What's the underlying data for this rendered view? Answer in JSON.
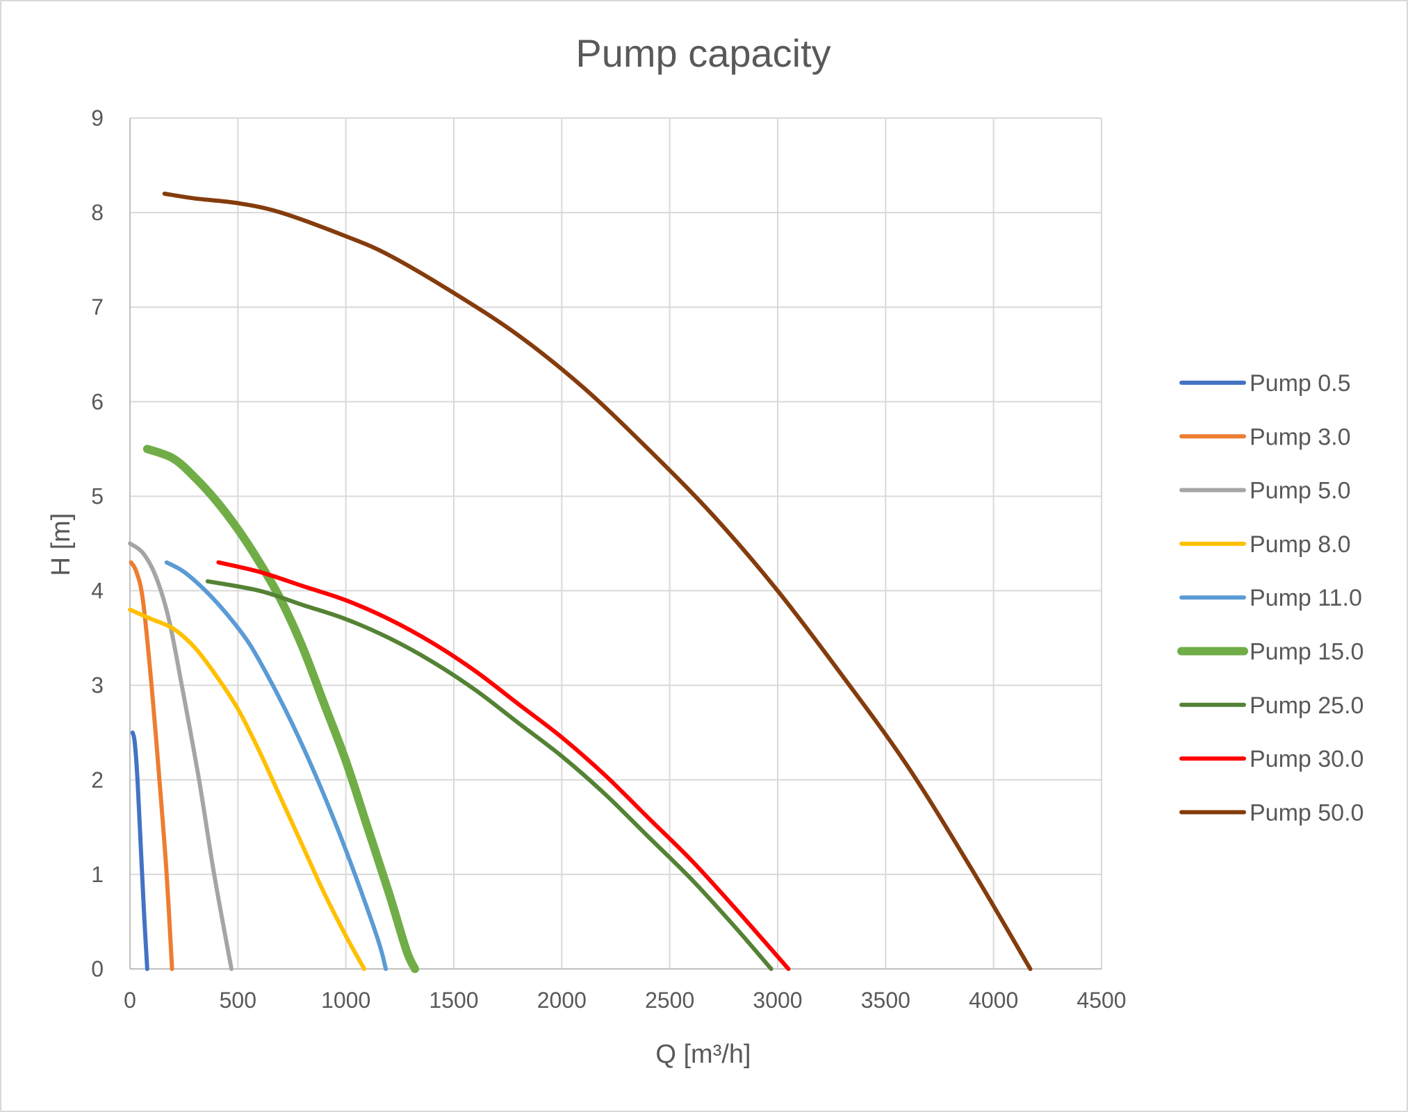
{
  "chart_data": {
    "type": "line",
    "title": "Pump capacity",
    "xlabel": "Q [m³/h]",
    "ylabel": "H [m]",
    "xlim": [
      0,
      4500
    ],
    "ylim": [
      0,
      9
    ],
    "x_ticks": [
      0,
      500,
      1000,
      1500,
      2000,
      2500,
      3000,
      3500,
      4000,
      4500
    ],
    "y_ticks": [
      0,
      1,
      2,
      3,
      4,
      5,
      6,
      7,
      8,
      9
    ],
    "grid": true,
    "legend_position": "right",
    "series": [
      {
        "name": "Pump 0.5",
        "color": "#4472c4",
        "weight": 3,
        "points": [
          [
            12,
            2.5
          ],
          [
            22,
            2.4
          ],
          [
            35,
            2.0
          ],
          [
            50,
            1.3
          ],
          [
            65,
            0.6
          ],
          [
            80,
            0
          ]
        ]
      },
      {
        "name": "Pump 3.0",
        "color": "#ed7d31",
        "weight": 3,
        "points": [
          [
            5,
            4.3
          ],
          [
            30,
            4.2
          ],
          [
            60,
            3.9
          ],
          [
            100,
            3.0
          ],
          [
            140,
            1.9
          ],
          [
            170,
            1.0
          ],
          [
            195,
            0
          ]
        ]
      },
      {
        "name": "Pump 5.0",
        "color": "#a5a5a5",
        "weight": 3,
        "points": [
          [
            0,
            4.5
          ],
          [
            60,
            4.4
          ],
          [
            120,
            4.15
          ],
          [
            180,
            3.7
          ],
          [
            240,
            3.0
          ],
          [
            320,
            2.0
          ],
          [
            390,
            1.0
          ],
          [
            470,
            0
          ]
        ]
      },
      {
        "name": "Pump 8.0",
        "color": "#ffc000",
        "weight": 3,
        "points": [
          [
            0,
            3.8
          ],
          [
            100,
            3.7
          ],
          [
            200,
            3.6
          ],
          [
            300,
            3.4
          ],
          [
            400,
            3.1
          ],
          [
            500,
            2.75
          ],
          [
            600,
            2.3
          ],
          [
            700,
            1.8
          ],
          [
            800,
            1.3
          ],
          [
            900,
            0.8
          ],
          [
            1000,
            0.35
          ],
          [
            1085,
            0
          ]
        ]
      },
      {
        "name": "Pump 11.0",
        "color": "#5b9bd5",
        "weight": 3,
        "points": [
          [
            170,
            4.3
          ],
          [
            250,
            4.2
          ],
          [
            350,
            4.0
          ],
          [
            450,
            3.75
          ],
          [
            550,
            3.45
          ],
          [
            650,
            3.05
          ],
          [
            750,
            2.6
          ],
          [
            850,
            2.1
          ],
          [
            950,
            1.55
          ],
          [
            1050,
            0.95
          ],
          [
            1150,
            0.3
          ],
          [
            1185,
            0
          ]
        ]
      },
      {
        "name": "Pump 15.0",
        "color": "#70ad47",
        "weight": 6,
        "points": [
          [
            80,
            5.5
          ],
          [
            200,
            5.4
          ],
          [
            300,
            5.2
          ],
          [
            400,
            4.95
          ],
          [
            500,
            4.65
          ],
          [
            600,
            4.3
          ],
          [
            700,
            3.9
          ],
          [
            800,
            3.4
          ],
          [
            900,
            2.8
          ],
          [
            1000,
            2.2
          ],
          [
            1100,
            1.5
          ],
          [
            1200,
            0.8
          ],
          [
            1280,
            0.2
          ],
          [
            1320,
            0
          ]
        ]
      },
      {
        "name": "Pump 25.0",
        "color": "#548235",
        "weight": 3,
        "points": [
          [
            360,
            4.1
          ],
          [
            600,
            4.0
          ],
          [
            800,
            3.85
          ],
          [
            1000,
            3.7
          ],
          [
            1200,
            3.5
          ],
          [
            1400,
            3.25
          ],
          [
            1600,
            2.95
          ],
          [
            1800,
            2.6
          ],
          [
            2000,
            2.25
          ],
          [
            2200,
            1.85
          ],
          [
            2400,
            1.4
          ],
          [
            2600,
            0.95
          ],
          [
            2800,
            0.45
          ],
          [
            2970,
            0
          ]
        ]
      },
      {
        "name": "Pump 30.0",
        "color": "#ff0000",
        "weight": 3,
        "points": [
          [
            410,
            4.3
          ],
          [
            600,
            4.2
          ],
          [
            800,
            4.05
          ],
          [
            1000,
            3.9
          ],
          [
            1200,
            3.7
          ],
          [
            1400,
            3.45
          ],
          [
            1600,
            3.15
          ],
          [
            1800,
            2.8
          ],
          [
            2000,
            2.45
          ],
          [
            2200,
            2.05
          ],
          [
            2400,
            1.6
          ],
          [
            2600,
            1.15
          ],
          [
            2800,
            0.65
          ],
          [
            3050,
            0
          ]
        ]
      },
      {
        "name": "Pump 50.0",
        "color": "#843c0c",
        "weight": 3,
        "points": [
          [
            160,
            8.2
          ],
          [
            300,
            8.15
          ],
          [
            500,
            8.1
          ],
          [
            700,
            8.0
          ],
          [
            1000,
            7.75
          ],
          [
            1200,
            7.55
          ],
          [
            1500,
            7.15
          ],
          [
            1800,
            6.7
          ],
          [
            2100,
            6.15
          ],
          [
            2400,
            5.5
          ],
          [
            2700,
            4.8
          ],
          [
            3000,
            4.0
          ],
          [
            3300,
            3.1
          ],
          [
            3600,
            2.15
          ],
          [
            3900,
            1.05
          ],
          [
            4170,
            0
          ]
        ]
      }
    ]
  }
}
